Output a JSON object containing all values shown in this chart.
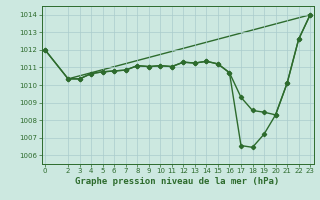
{
  "line1_x": [
    0,
    2,
    3,
    4,
    5,
    6,
    7,
    8,
    9,
    10,
    11,
    12,
    13,
    14,
    15,
    16,
    17,
    18,
    19,
    20,
    21,
    22,
    23
  ],
  "line1_y": [
    1012.0,
    1010.35,
    1010.35,
    1010.65,
    1010.75,
    1010.8,
    1010.85,
    1011.1,
    1011.05,
    1011.1,
    1011.05,
    1011.3,
    1011.25,
    1011.35,
    1011.2,
    1010.7,
    1009.3,
    1008.55,
    1008.45,
    1008.3,
    1010.1,
    1012.6,
    1014.0
  ],
  "line2_x": [
    0,
    2,
    3,
    4,
    5,
    6,
    7,
    8,
    9,
    10,
    11,
    12,
    13,
    14,
    15,
    16,
    17,
    18,
    19,
    20,
    21,
    22,
    23
  ],
  "line2_y": [
    1012.0,
    1010.35,
    1010.35,
    1010.65,
    1010.75,
    1010.8,
    1010.85,
    1011.1,
    1011.05,
    1011.1,
    1011.05,
    1011.3,
    1011.25,
    1011.35,
    1011.2,
    1010.7,
    1006.55,
    1006.45,
    1007.2,
    1008.3,
    1010.1,
    1012.6,
    1014.0
  ],
  "line3_x": [
    2,
    23
  ],
  "line3_y": [
    1010.35,
    1014.0
  ],
  "color": "#2d6b2d",
  "bg_color": "#cce8e0",
  "grid_color": "#aacccc",
  "ylim": [
    1005.5,
    1014.5
  ],
  "xlim": [
    -0.3,
    23.3
  ],
  "yticks": [
    1006,
    1007,
    1008,
    1009,
    1010,
    1011,
    1012,
    1013,
    1014
  ],
  "xticks": [
    0,
    2,
    3,
    4,
    5,
    6,
    7,
    8,
    9,
    10,
    11,
    12,
    13,
    14,
    15,
    16,
    17,
    18,
    19,
    20,
    21,
    22,
    23
  ],
  "xlabel": "Graphe pression niveau de la mer (hPa)",
  "marker": "D",
  "markersize": 2.2,
  "linewidth": 1.0,
  "label_fontsize": 6.5,
  "tick_fontsize": 5.0
}
